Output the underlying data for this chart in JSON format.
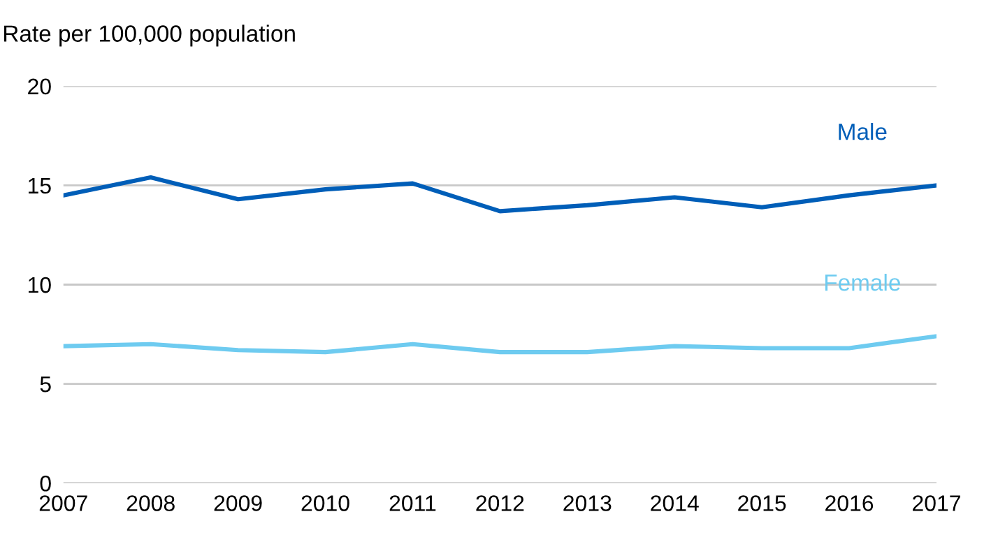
{
  "chart_data": {
    "type": "line",
    "ylabel": "Rate per 100,000 population",
    "x": [
      2007,
      2008,
      2009,
      2010,
      2011,
      2012,
      2013,
      2014,
      2015,
      2016,
      2017
    ],
    "series": [
      {
        "name": "Male",
        "color": "#005eb8",
        "values": [
          14.5,
          15.4,
          14.3,
          14.8,
          15.1,
          13.7,
          14.0,
          14.4,
          13.9,
          14.5,
          15.0
        ]
      },
      {
        "name": "Female",
        "color": "#6ecbf0",
        "values": [
          6.9,
          7.0,
          6.7,
          6.6,
          7.0,
          6.6,
          6.6,
          6.9,
          6.8,
          6.8,
          7.4
        ]
      }
    ],
    "xlim": [
      2007,
      2017
    ],
    "xticks": [
      2007,
      2008,
      2009,
      2010,
      2011,
      2012,
      2013,
      2014,
      2015,
      2016,
      2017
    ],
    "ylim": [
      0,
      20
    ],
    "yticks": [
      0,
      5,
      10,
      15,
      20
    ],
    "grid": "y",
    "legend": false,
    "marker": "none",
    "line_style": "solid"
  }
}
